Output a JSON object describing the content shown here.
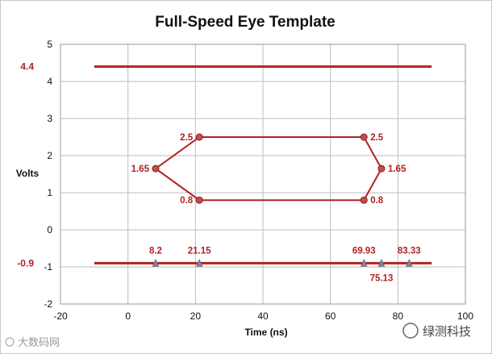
{
  "chart_data": {
    "type": "line",
    "title": "Full-Speed Eye Template",
    "xlabel": "Time (ns)",
    "ylabel": "Volts",
    "xlim": [
      -20,
      100
    ],
    "ylim": [
      -2,
      5
    ],
    "xticks": [
      -20,
      0,
      20,
      40,
      60,
      80,
      100
    ],
    "yticks": [
      -2,
      -1,
      0,
      1,
      2,
      3,
      4,
      5
    ],
    "grid": true,
    "line_color": "#b22222",
    "marker_color": "#c0504d",
    "triangle_color": "#7f7f9f",
    "limit_lines": [
      {
        "label": "4.4",
        "y": 4.4,
        "x": [
          -10,
          90
        ]
      },
      {
        "label": "-0.9",
        "y": -0.9,
        "x": [
          -10,
          90
        ]
      }
    ],
    "eye_polygon": [
      {
        "x": 8.2,
        "y": 1.65,
        "label": "1.65"
      },
      {
        "x": 21.15,
        "y": 2.5,
        "label": "2.5"
      },
      {
        "x": 69.93,
        "y": 2.5,
        "label": "2.5"
      },
      {
        "x": 75.13,
        "y": 1.65,
        "label": "1.65"
      },
      {
        "x": 69.93,
        "y": 0.8,
        "label": "0.8"
      },
      {
        "x": 21.15,
        "y": 0.8,
        "label": "0.8"
      }
    ],
    "time_markers": [
      {
        "x": 8.2,
        "label": "8.2",
        "pos": "above"
      },
      {
        "x": 21.15,
        "label": "21.15",
        "pos": "above"
      },
      {
        "x": 69.93,
        "label": "69.93",
        "pos": "above"
      },
      {
        "x": 75.13,
        "label": "75.13",
        "pos": "below"
      },
      {
        "x": 83.33,
        "label": "83.33",
        "pos": "above"
      }
    ]
  },
  "watermark": {
    "left": "大数码网",
    "right": "绿测科技"
  }
}
